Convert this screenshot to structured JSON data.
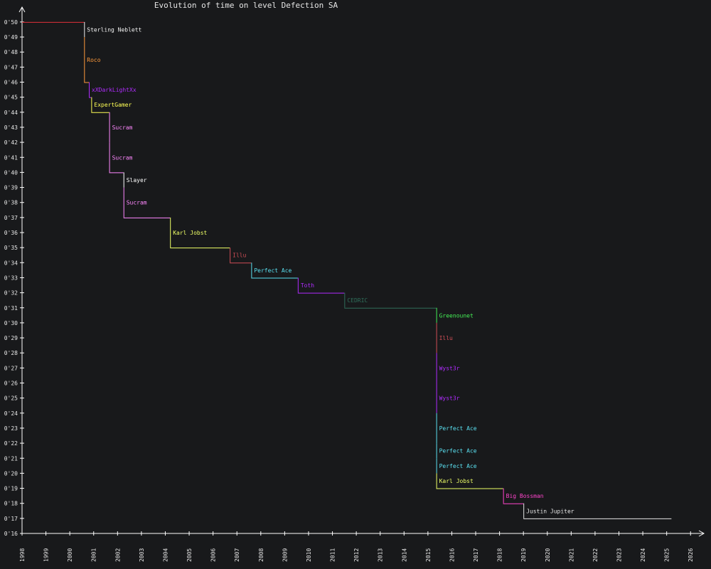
{
  "chart_data": {
    "type": "line",
    "step": true,
    "title": "Evolution of time on level Defection SA",
    "xlabel": "",
    "ylabel": "",
    "xlim": [
      1998,
      2026.7
    ],
    "ylim": [
      16,
      50.9
    ],
    "x_ticks": [
      1998,
      1999,
      2000,
      2001,
      2002,
      2003,
      2004,
      2005,
      2006,
      2007,
      2008,
      2009,
      2010,
      2011,
      2012,
      2013,
      2014,
      2015,
      2016,
      2017,
      2018,
      2019,
      2020,
      2021,
      2022,
      2023,
      2024,
      2025,
      2026
    ],
    "x_tick_labels": [
      "1998",
      "1999",
      "2000",
      "2001",
      "2002",
      "2003",
      "2004",
      "2005",
      "2006",
      "2007",
      "2008",
      "2009",
      "2010",
      "2011",
      "2012",
      "2013",
      "2014",
      "2015",
      "2016",
      "2017",
      "2018",
      "2019",
      "2020",
      "2021",
      "2022",
      "2023",
      "2024",
      "2025",
      "2026"
    ],
    "y_ticks": [
      16,
      17,
      18,
      19,
      20,
      21,
      22,
      23,
      24,
      25,
      26,
      27,
      28,
      29,
      30,
      31,
      32,
      33,
      34,
      35,
      36,
      37,
      38,
      39,
      40,
      41,
      42,
      43,
      44,
      45,
      46,
      47,
      48,
      49,
      50
    ],
    "y_tick_labels": [
      "0'16",
      "0'17",
      "0'18",
      "0'19",
      "0'20",
      "0'21",
      "0'22",
      "0'23",
      "0'24",
      "0'25",
      "0'26",
      "0'27",
      "0'28",
      "0'29",
      "0'30",
      "0'31",
      "0'32",
      "0'33",
      "0'34",
      "0'35",
      "0'36",
      "0'37",
      "0'38",
      "0'39",
      "0'40",
      "0'41",
      "0'42",
      "0'43",
      "0'44",
      "0'45",
      "0'46",
      "0'47",
      "0'48",
      "0'49",
      "0'50"
    ],
    "end_x": 2025.2,
    "points": [
      {
        "x": 1998,
        "y": 50,
        "name": "",
        "color": "#e0303a"
      },
      {
        "x": 2000.6,
        "y": 49,
        "name": "Sterling Neblett",
        "color": "#f0f0f0"
      },
      {
        "x": 2000.6,
        "y": 46,
        "name": "Roco",
        "color": "#ff9a3c"
      },
      {
        "x": 2000.8,
        "y": 45,
        "name": "xXDarkLightXx",
        "color": "#b02cff"
      },
      {
        "x": 2000.9,
        "y": 44,
        "name": "ExpertGamer",
        "color": "#ffff55"
      },
      {
        "x": 2001.65,
        "y": 42,
        "name": "Sucram",
        "color": "#ff88ff"
      },
      {
        "x": 2001.65,
        "y": 40,
        "name": "Sucram",
        "color": "#ff88ff"
      },
      {
        "x": 2002.25,
        "y": 39,
        "name": "Slayer",
        "color": "#ffffff"
      },
      {
        "x": 2002.25,
        "y": 37,
        "name": "Sucram",
        "color": "#ff88ff"
      },
      {
        "x": 2004.2,
        "y": 35,
        "name": "Karl Jobst",
        "color": "#eeff66"
      },
      {
        "x": 2006.7,
        "y": 34,
        "name": "Illu",
        "color": "#d04e56"
      },
      {
        "x": 2007.6,
        "y": 33,
        "name": "Perfect Ace",
        "color": "#5ae0f0"
      },
      {
        "x": 2009.55,
        "y": 32,
        "name": "Toth",
        "color": "#b02cff"
      },
      {
        "x": 2011.5,
        "y": 31,
        "name": "CEDRIC",
        "color": "#2f6e5a"
      },
      {
        "x": 2015.35,
        "y": 30,
        "name": "Greenounet",
        "color": "#44ee55"
      },
      {
        "x": 2015.35,
        "y": 28,
        "name": "Illu",
        "color": "#d04e56"
      },
      {
        "x": 2015.35,
        "y": 26,
        "name": "Wyst3r",
        "color": "#b02cff"
      },
      {
        "x": 2015.35,
        "y": 24,
        "name": "Wyst3r",
        "color": "#b02cff"
      },
      {
        "x": 2015.35,
        "y": 22,
        "name": "Perfect Ace",
        "color": "#5ae0f0"
      },
      {
        "x": 2015.35,
        "y": 21,
        "name": "Perfect Ace",
        "color": "#5ae0f0"
      },
      {
        "x": 2015.35,
        "y": 20,
        "name": "Perfect Ace",
        "color": "#5ae0f0"
      },
      {
        "x": 2015.35,
        "y": 19,
        "name": "Karl Jobst",
        "color": "#eeff66"
      },
      {
        "x": 2018.15,
        "y": 18,
        "name": "Big Bossman",
        "color": "#ff44cc"
      },
      {
        "x": 2019,
        "y": 17,
        "name": "Justin Jupiter",
        "color": "#e6e6e6"
      }
    ],
    "axis_color": "#ffffff",
    "text_color": "#e6e6e6",
    "grid": false
  }
}
